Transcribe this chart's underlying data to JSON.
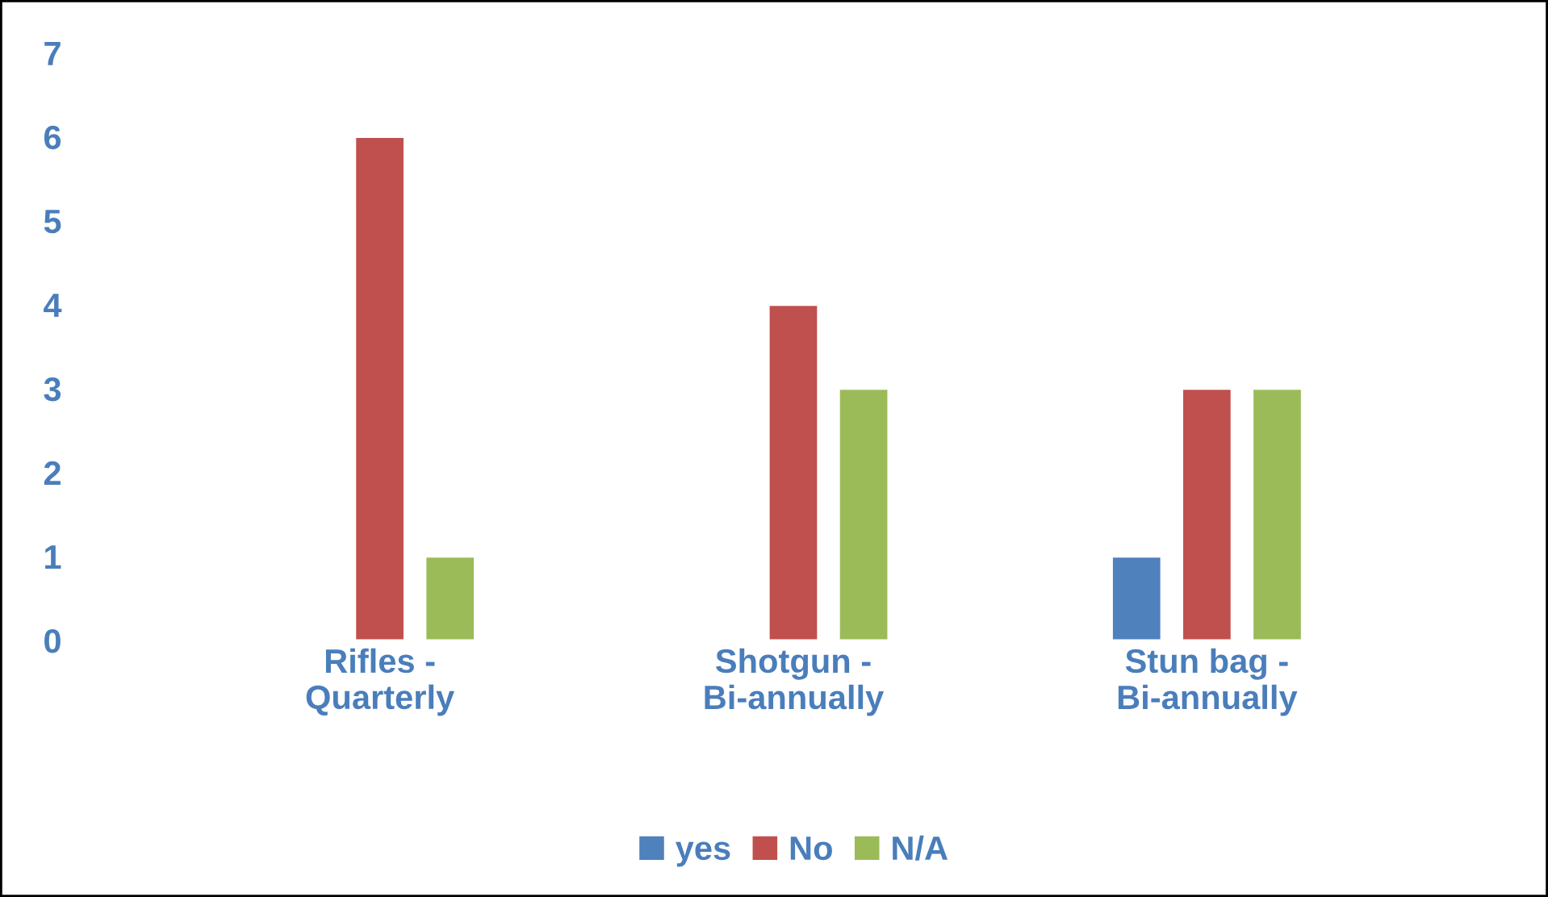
{
  "chart_data": {
    "type": "bar",
    "categories": [
      "Rifles -\nQuarterly",
      "Shotgun -\nBi-annually",
      "Stun bag -\nBi-annually"
    ],
    "series": [
      {
        "name": "yes",
        "color": "#4f81bd",
        "values": [
          null,
          null,
          1
        ]
      },
      {
        "name": "No",
        "color": "#c0504d",
        "values": [
          6,
          4,
          3
        ]
      },
      {
        "name": "N/A",
        "color": "#9bbb59",
        "values": [
          1,
          3,
          3
        ]
      }
    ],
    "ylim": [
      0,
      7
    ],
    "yticks": [
      0,
      1,
      2,
      3,
      4,
      5,
      6,
      7
    ],
    "grid": false,
    "legend": "bottom"
  }
}
